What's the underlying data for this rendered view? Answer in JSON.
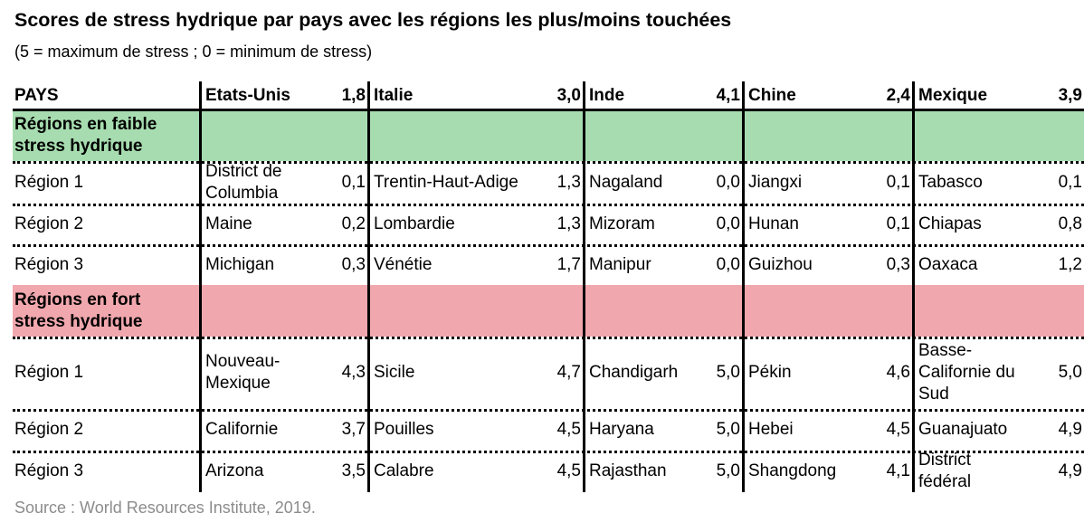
{
  "title": "Scores de stress hydrique par pays avec les régions les plus/moins touchées",
  "subtitle": "(5 = maximum de stress ; 0 = minimum de stress)",
  "source": "Source : World Resources Institute, 2019.",
  "colors": {
    "low_stress_band": "#a6dcaf",
    "high_stress_band": "#f0a7ad",
    "source_text": "#8c8c8c"
  },
  "chart_data": {
    "type": "table",
    "header_label": "PAYS",
    "countries": [
      {
        "name": "Etats-Unis",
        "score": "1,8"
      },
      {
        "name": "Italie",
        "score": "3,0"
      },
      {
        "name": "Inde",
        "score": "4,1"
      },
      {
        "name": "Chine",
        "score": "2,4"
      },
      {
        "name": "Mexique",
        "score": "3,9"
      }
    ],
    "groups": [
      {
        "label": "Régions en faible stress hydrique",
        "rows": [
          {
            "label": "Région 1",
            "cells": [
              {
                "region": "District de Columbia",
                "score": "0,1"
              },
              {
                "region": "Trentin-Haut-Adige",
                "score": "1,3"
              },
              {
                "region": "Nagaland",
                "score": "0,0"
              },
              {
                "region": "Jiangxi",
                "score": "0,1"
              },
              {
                "region": "Tabasco",
                "score": "0,1"
              }
            ]
          },
          {
            "label": "Région 2",
            "cells": [
              {
                "region": "Maine",
                "score": "0,2"
              },
              {
                "region": "Lombardie",
                "score": "1,3"
              },
              {
                "region": "Mizoram",
                "score": "0,0"
              },
              {
                "region": "Hunan",
                "score": "0,1"
              },
              {
                "region": "Chiapas",
                "score": "0,8"
              }
            ]
          },
          {
            "label": "Région 3",
            "cells": [
              {
                "region": "Michigan",
                "score": "0,3"
              },
              {
                "region": "Vénétie",
                "score": "1,7"
              },
              {
                "region": "Manipur",
                "score": "0,0"
              },
              {
                "region": "Guizhou",
                "score": "0,3"
              },
              {
                "region": "Oaxaca",
                "score": "1,2"
              }
            ]
          }
        ]
      },
      {
        "label": "Régions en fort stress hydrique",
        "rows": [
          {
            "label": "Région 1",
            "cells": [
              {
                "region": "Nouveau-Mexique",
                "score": "4,3"
              },
              {
                "region": "Sicile",
                "score": "4,7"
              },
              {
                "region": "Chandigarh",
                "score": "5,0"
              },
              {
                "region": "Pékin",
                "score": "4,6"
              },
              {
                "region": "Basse-Californie du Sud",
                "score": "5,0"
              }
            ]
          },
          {
            "label": "Région 2",
            "cells": [
              {
                "region": "Californie",
                "score": "3,7"
              },
              {
                "region": "Pouilles",
                "score": "4,5"
              },
              {
                "region": "Haryana",
                "score": "5,0"
              },
              {
                "region": "Hebei",
                "score": "4,5"
              },
              {
                "region": "Guanajuato",
                "score": "4,9"
              }
            ]
          },
          {
            "label": "Région 3",
            "cells": [
              {
                "region": "Arizona",
                "score": "3,5"
              },
              {
                "region": "Calabre",
                "score": "4,5"
              },
              {
                "region": "Rajasthan",
                "score": "5,0"
              },
              {
                "region": "Shangdong",
                "score": "4,1"
              },
              {
                "region": "District fédéral",
                "score": "4,9"
              }
            ]
          }
        ]
      }
    ]
  }
}
